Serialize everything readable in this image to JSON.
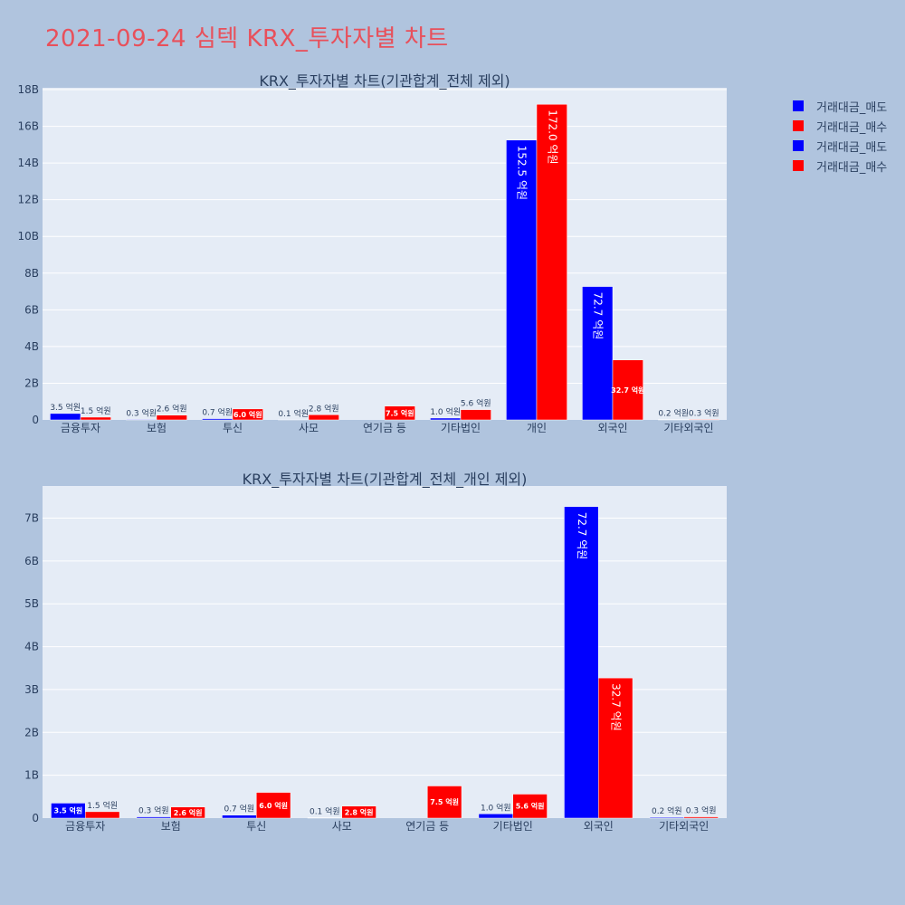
{
  "page": {
    "title": "2021-09-24 심텍 KRX_투자자별 차트"
  },
  "colors": {
    "sell": "#0000ff",
    "buy": "#ff0000",
    "plot_bg": "#e5ecf6",
    "outer_bg": "#b0c4de"
  },
  "legend": {
    "items": [
      {
        "label": "거래대금_매도",
        "color": "#0000ff"
      },
      {
        "label": "거래대금_매수",
        "color": "#ff0000"
      },
      {
        "label": "거래대금_매도",
        "color": "#0000ff"
      },
      {
        "label": "거래대금_매수",
        "color": "#ff0000"
      }
    ]
  },
  "chart_data": [
    {
      "type": "bar",
      "title": "KRX_투자자별 차트(기관합계_전체 제외)",
      "categories": [
        "금융투자",
        "보험",
        "투신",
        "사모",
        "연기금 등",
        "기타법인",
        "개인",
        "외국인",
        "기타외국인"
      ],
      "series": [
        {
          "name": "거래대금_매도",
          "values": [
            0.35,
            0.03,
            0.07,
            0.01,
            0,
            0.1,
            15.25,
            7.27,
            0.02
          ],
          "labels": [
            "3.5 억원",
            "0.3 억원",
            "0.7 억원",
            "0.1 억원",
            "",
            "1.0 억원",
            "152.5 억원",
            "72.7 억원",
            "0.2 억원"
          ]
        },
        {
          "name": "거래대금_매수",
          "values": [
            0.15,
            0.26,
            0.6,
            0.28,
            0.75,
            0.56,
            17.2,
            3.27,
            0.03
          ],
          "labels": [
            "1.5 억원",
            "2.6 억원",
            "6.0 억원",
            "2.8 억원",
            "7.5 억원",
            "5.6 억원",
            "172.0 억원",
            "32.7 억원",
            "0.3 억원"
          ]
        }
      ],
      "yticks": [
        "0",
        "2B",
        "4B",
        "6B",
        "8B",
        "10B",
        "12B",
        "14B",
        "16B",
        "18B"
      ],
      "ylim": [
        0,
        18.1
      ],
      "unit": "B"
    },
    {
      "type": "bar",
      "title": "KRX_투자자별 차트(기관합계_전체_개인 제외)",
      "categories": [
        "금융투자",
        "보험",
        "투신",
        "사모",
        "연기금 등",
        "기타법인",
        "외국인",
        "기타외국인"
      ],
      "series": [
        {
          "name": "거래대금_매도",
          "values": [
            0.35,
            0.03,
            0.07,
            0.01,
            0,
            0.1,
            7.27,
            0.02
          ],
          "labels": [
            "3.5 억원",
            "0.3 억원",
            "0.7 억원",
            "0.1 억원",
            "",
            "1.0 억원",
            "72.7 억원",
            "0.2 억원"
          ]
        },
        {
          "name": "거래대금_매수",
          "values": [
            0.15,
            0.26,
            0.6,
            0.28,
            0.75,
            0.56,
            3.27,
            0.03
          ],
          "labels": [
            "1.5 억원",
            "2.6 억원",
            "6.0 억원",
            "2.8 억원",
            "7.5 억원",
            "5.6 억원",
            "32.7 억원",
            "0.3 억원"
          ]
        }
      ],
      "yticks": [
        "0",
        "1B",
        "2B",
        "3B",
        "4B",
        "5B",
        "6B",
        "7B"
      ],
      "ylim": [
        0,
        7.75
      ],
      "unit": "B"
    }
  ]
}
